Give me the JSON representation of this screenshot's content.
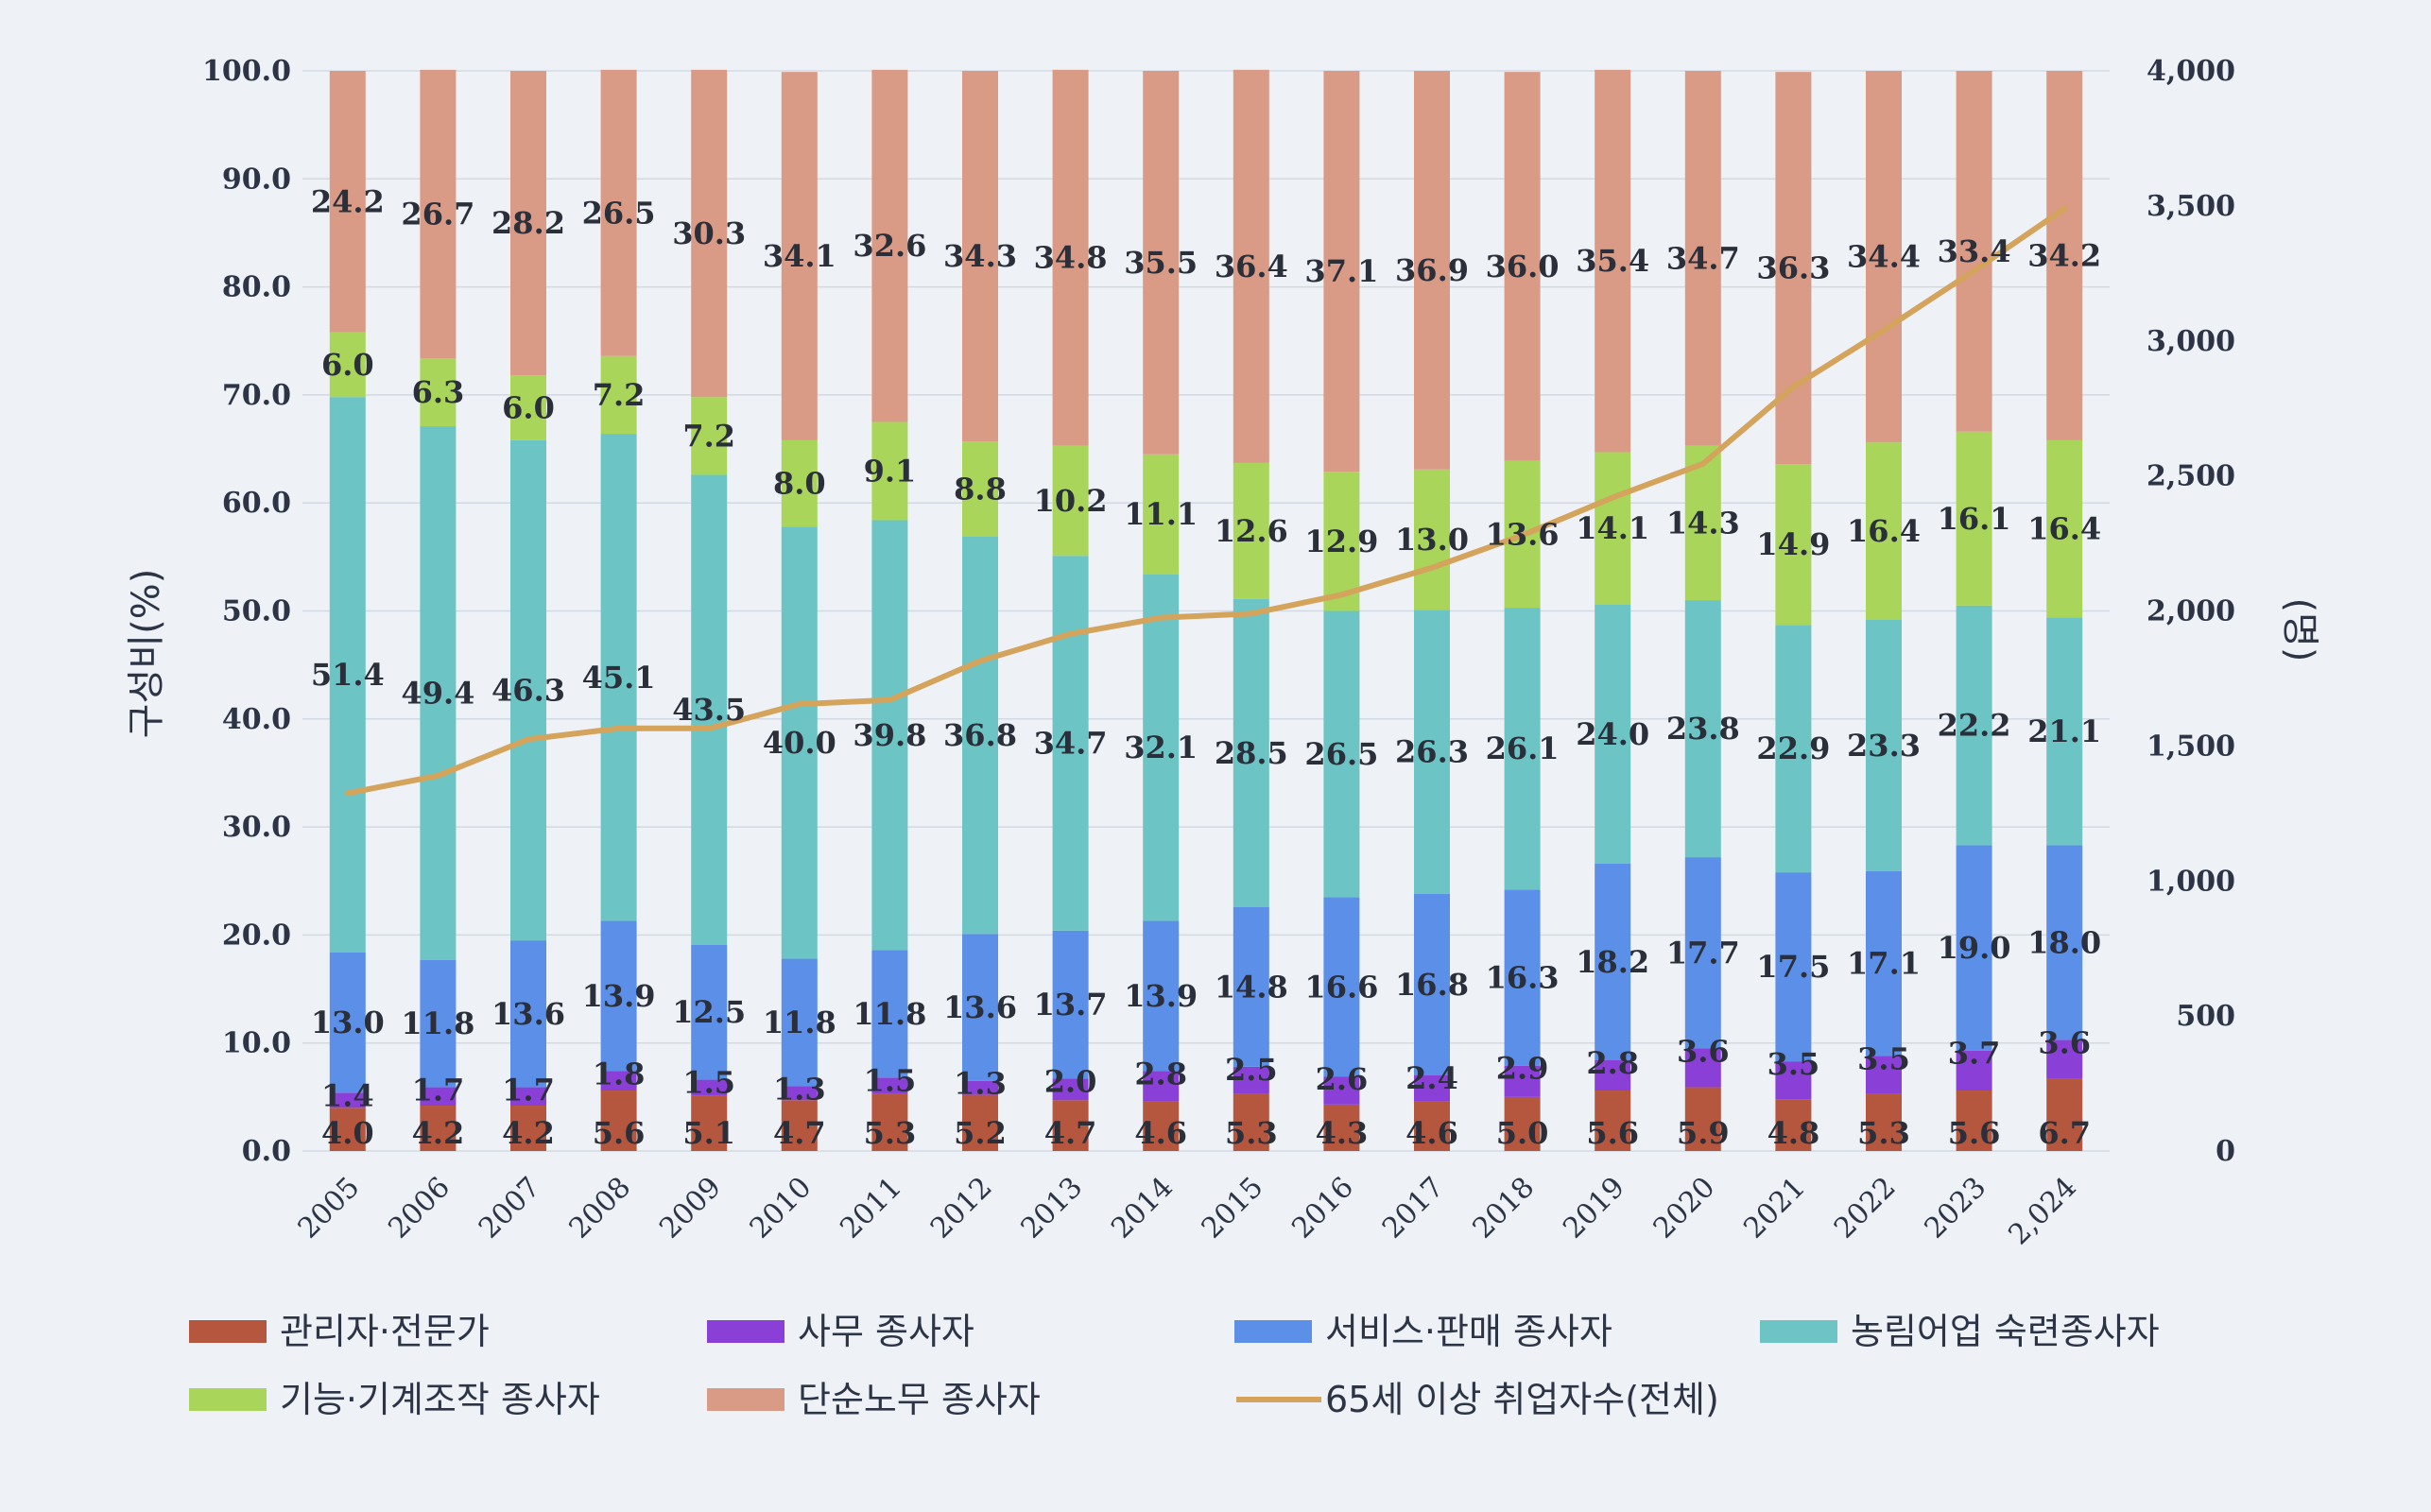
{
  "chart_data": {
    "type": "bar",
    "stacked": true,
    "categories": [
      "2005",
      "2006",
      "2007",
      "2008",
      "2009",
      "2010",
      "2011",
      "2012",
      "2013",
      "2014",
      "2015",
      "2016",
      "2017",
      "2018",
      "2019",
      "2020",
      "2021",
      "2022",
      "2023",
      "2,024"
    ],
    "ylabel": "구성비(%)",
    "y2label": "(명)",
    "ylim": [
      0,
      100
    ],
    "y2lim": [
      0,
      4000
    ],
    "yticks": [
      "0.0",
      "10.0",
      "20.0",
      "30.0",
      "40.0",
      "50.0",
      "60.0",
      "70.0",
      "80.0",
      "90.0",
      "100.0"
    ],
    "y2ticks": [
      "0",
      "500",
      "1,000",
      "1,500",
      "2,000",
      "2,500",
      "3,000",
      "3,500",
      "4,000"
    ],
    "grid": true,
    "legend_position": "bottom",
    "series": [
      {
        "name": "관리자·전문가",
        "color": "#b5573f",
        "values": [
          4.0,
          4.2,
          4.2,
          5.6,
          5.1,
          4.7,
          5.3,
          5.2,
          4.7,
          4.6,
          5.3,
          4.3,
          4.6,
          5.0,
          5.6,
          5.9,
          4.8,
          5.3,
          5.6,
          6.7
        ],
        "labels": [
          "4.0",
          "4.2",
          "4.2",
          "5.6",
          "5.1",
          "4.7",
          "5.3",
          "5.2",
          "4.7",
          "4.6",
          "5.3",
          "4.3",
          "4.6",
          "5.0",
          "5.6",
          "5.9",
          "4.8",
          "5.3",
          "5.6",
          "6.7"
        ]
      },
      {
        "name": "사무 종사자",
        "color": "#8a3fd6",
        "values": [
          1.4,
          1.7,
          1.7,
          1.8,
          1.5,
          1.3,
          1.5,
          1.3,
          2.0,
          2.8,
          2.5,
          2.6,
          2.4,
          2.9,
          2.8,
          3.6,
          3.5,
          3.5,
          3.7,
          3.6
        ],
        "labels": [
          "1.4",
          "1.7",
          "1.7",
          "1.8",
          "1.5",
          "1.3",
          "1.5",
          "1.3",
          "2.0",
          "2.8",
          "2.5",
          "2.6",
          "2.4",
          "2.9",
          "2.8",
          "3.6",
          "3.5",
          "3.5",
          "3.7",
          "3.6"
        ]
      },
      {
        "name": "서비스·판매 종사자",
        "color": "#5b8fe8",
        "values": [
          13.0,
          11.8,
          13.6,
          13.9,
          12.5,
          11.8,
          11.8,
          13.6,
          13.7,
          13.9,
          14.8,
          16.6,
          16.8,
          16.3,
          18.2,
          17.7,
          17.5,
          17.1,
          19.0,
          18.0
        ],
        "labels": [
          "13.0",
          "11.8",
          "13.6",
          "13.9",
          "12.5",
          "11.8",
          "11.8",
          "13.6",
          "13.7",
          "13.9",
          "14.8",
          "16.6",
          "16.8",
          "16.3",
          "18.2",
          "17.7",
          "17.5",
          "17.1",
          "19.0",
          "18.0"
        ]
      },
      {
        "name": "농림어업 숙련종사자",
        "color": "#6cc4c4",
        "values": [
          51.4,
          49.4,
          46.3,
          45.1,
          43.5,
          40.0,
          39.8,
          36.8,
          34.7,
          32.1,
          28.5,
          26.5,
          26.3,
          26.1,
          24.0,
          23.8,
          22.9,
          23.3,
          22.2,
          21.1
        ],
        "labels": [
          "51.4",
          "49.4",
          "46.3",
          "45.1",
          "43.5",
          "40.0",
          "39.8",
          "36.8",
          "34.7",
          "32.1",
          "28.5",
          "26.5",
          "26.3",
          "26.1",
          "24.0",
          "23.8",
          "22.9",
          "23.3",
          "22.2",
          "21.1"
        ]
      },
      {
        "name": "기능·기계조작 종사자",
        "color": "#a9d65a",
        "values": [
          6.0,
          6.3,
          6.0,
          7.2,
          7.2,
          8.0,
          9.1,
          8.8,
          10.2,
          11.1,
          12.6,
          12.9,
          13.0,
          13.6,
          14.1,
          14.3,
          14.9,
          16.4,
          16.1,
          16.4
        ],
        "labels": [
          "6.0",
          "6.3",
          "6.0",
          "7.2",
          "7.2",
          "8.0",
          "9.1",
          "8.8",
          "10.2",
          "11.1",
          "12.6",
          "12.9",
          "13.0",
          "13.6",
          "14.1",
          "14.3",
          "14.9",
          "16.4",
          "16.1",
          "16.4"
        ]
      },
      {
        "name": "단순노무 종사자",
        "color": "#d99a86",
        "values": [
          24.2,
          26.7,
          28.2,
          26.5,
          30.3,
          34.1,
          32.6,
          34.3,
          34.8,
          35.5,
          36.4,
          37.1,
          36.9,
          36.0,
          35.4,
          34.7,
          36.3,
          34.4,
          33.4,
          34.2
        ],
        "labels": [
          "24.2",
          "26.7",
          "28.2",
          "26.5",
          "30.3",
          "34.1",
          "32.6",
          "34.3",
          "34.8",
          "35.5",
          "36.4",
          "37.1",
          "36.9",
          "36.0",
          "35.4",
          "34.7",
          "36.3",
          "34.4",
          "33.4",
          "34.2"
        ]
      }
    ],
    "line_series": {
      "name": "65세 이상 취업자수(전체)",
      "color": "#d4a35c",
      "axis": "right",
      "values": [
        1325,
        1390,
        1525,
        1565,
        1565,
        1655,
        1670,
        1815,
        1915,
        1975,
        1990,
        2060,
        2160,
        2280,
        2420,
        2545,
        2830,
        3040,
        3260,
        3490
      ]
    }
  }
}
